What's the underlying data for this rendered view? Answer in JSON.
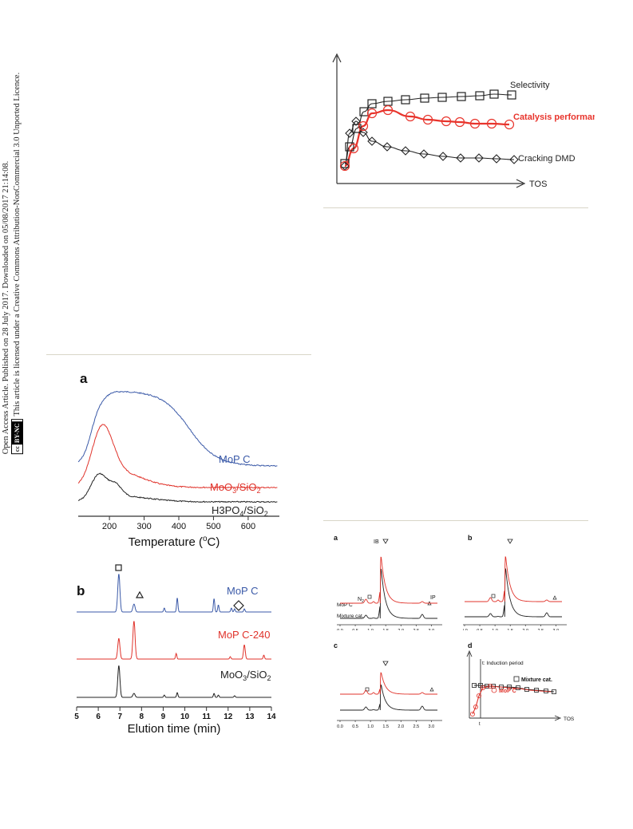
{
  "sidebar": {
    "line1": "Open Access Article. Published on 28 July 2017. Downloaded on 05/08/2017 21:14:08.",
    "line2": "This article is licensed under a Creative Commons Attribution-NonCommercial 3.0 Unported Licence.",
    "badge_cc": "cc",
    "badge_bync": "BY-NC"
  },
  "top_chart": {
    "selectivity_label": "Selectivity",
    "catalysis_label": "Catalysis performance",
    "cracking_label": "Cracking DMD",
    "x_label": "TOS",
    "colors": {
      "black": "#222222",
      "red": "#e8342c"
    }
  },
  "panel_a": {
    "label": "a",
    "series": [
      {
        "name": "MoP C",
        "color": "#3b5aa8"
      },
      {
        "name": "MoO3/SiO2",
        "name_main": "MoO",
        "name_sub": "3",
        "name_tail": "/SiO",
        "name_sub2": "2",
        "color": "#e0332b"
      },
      {
        "name": "H3PO4/SiO2",
        "name_main": "H3PO",
        "name_sub": "4",
        "name_tail": "/SiO",
        "name_sub2": "2",
        "color": "#222222"
      }
    ],
    "x_ticks": [
      "200",
      "300",
      "400",
      "500",
      "600"
    ],
    "x_label_main": "Temperature (",
    "x_label_sup": "o",
    "x_label_tail": "C)"
  },
  "panel_b": {
    "label": "b",
    "series": [
      {
        "name": "MoP C",
        "color": "#3b5aa8"
      },
      {
        "name": "MoP C-240",
        "color": "#e0332b"
      },
      {
        "name": "MoO3/SiO2",
        "name_main": "MoO",
        "name_sub": "3",
        "name_tail": "/SiO",
        "name_sub2": "2",
        "color": "#222222"
      }
    ],
    "x_ticks": [
      "5",
      "6",
      "7",
      "8",
      "9",
      "10",
      "11",
      "12",
      "13",
      "14"
    ],
    "x_label": "Elution time (min)"
  },
  "panel_c_group": {
    "a_label": "a",
    "b_label": "b",
    "c_label": "c",
    "d_label": "d",
    "ib_label": "IB",
    "n2_main": "N",
    "n2_sub": "2",
    "ip_label": "IP",
    "mop_c": "MoP C",
    "mixture": "Mixture cat.",
    "x_ticks": [
      "0.0",
      "0.5",
      "1.0",
      "1.5",
      "2.0",
      "2.5",
      "3.0"
    ],
    "d_induction": "t: Induction period",
    "d_mixture": "Mixture cat.",
    "d_mop": "MoP C",
    "d_t": "t",
    "d_tos": "TOS"
  }
}
